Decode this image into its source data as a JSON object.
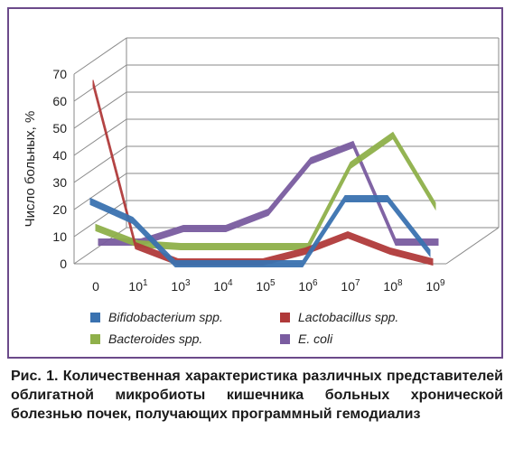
{
  "chart_data": {
    "type": "line",
    "style": "3d-line",
    "ylabel": "Число больных, %",
    "xlabel": "",
    "ylim": [
      0,
      70
    ],
    "yticks": [
      "0",
      "10",
      "20",
      "30",
      "40",
      "50",
      "60",
      "70"
    ],
    "categories": [
      {
        "base": "0",
        "exp": ""
      },
      {
        "base": "10",
        "exp": "1"
      },
      {
        "base": "10",
        "exp": "3"
      },
      {
        "base": "10",
        "exp": "4"
      },
      {
        "base": "10",
        "exp": "5"
      },
      {
        "base": "10",
        "exp": "6"
      },
      {
        "base": "10",
        "exp": "7"
      },
      {
        "base": "10",
        "exp": "8"
      },
      {
        "base": "10",
        "exp": "9"
      }
    ],
    "series": [
      {
        "name": "Bifidobacterium spp.",
        "color": "#3a72b0",
        "values": [
          23,
          16,
          0,
          0,
          0,
          0,
          24,
          24,
          4
        ]
      },
      {
        "name": "Lactobacillus spp.",
        "color": "#b03a3a",
        "values": [
          66,
          6,
          0,
          0,
          0,
          4,
          10,
          4,
          0
        ]
      },
      {
        "name": "Bacteroides spp.",
        "color": "#8fb04a",
        "values": [
          12,
          6,
          5,
          5,
          5,
          5,
          35,
          46,
          20
        ]
      },
      {
        "name": "E. coli",
        "color": "#7a5ca0",
        "values": [
          6,
          6,
          11,
          11,
          17,
          36,
          42,
          6,
          6
        ]
      }
    ],
    "grid": true,
    "legend_position": "bottom"
  },
  "legend": [
    {
      "label": "Bifidobacterium spp.",
      "color": "#3a72b0"
    },
    {
      "label": "Lactobacillus spp.",
      "color": "#b03a3a"
    },
    {
      "label": "Bacteroides spp.",
      "color": "#8fb04a"
    },
    {
      "label": "E. coli",
      "color": "#7a5ca0"
    }
  ],
  "caption": "Рис. 1. Количественная характеристика различных представителей облигатной микробиоты кишечника больных хронической болезнью почек, получающих программный гемодиализ"
}
